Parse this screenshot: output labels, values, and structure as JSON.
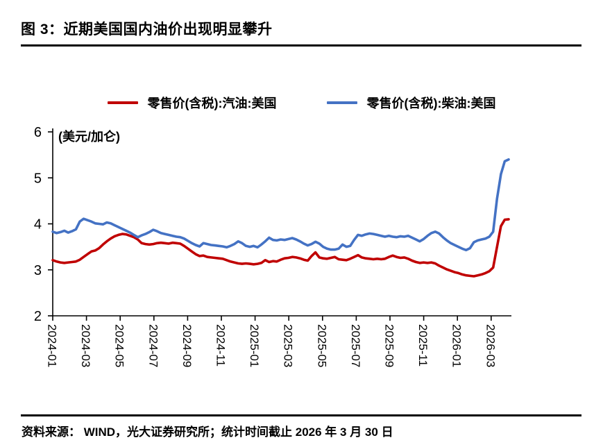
{
  "page": {
    "title": "图 3：近期美国国内油价出现明显攀升",
    "source_note": "资料来源： WIND，光大证券研究所；统计时间截止 2026 年 3 月 30 日"
  },
  "chart_data": {
    "type": "line",
    "title": "图 3：近期美国国内油价出现明显攀升",
    "unit_label": "(美元/加仑)",
    "xlabel": "",
    "ylabel": "(美元/加仑)",
    "ylim": [
      2,
      6
    ],
    "yticks": [
      6,
      5,
      4,
      3,
      2
    ],
    "grid": false,
    "legend_position": "top",
    "x_ticklabels": [
      "2024-01",
      "2024-03",
      "2024-05",
      "2024-07",
      "2024-09",
      "2024-11",
      "2025-01",
      "2025-03",
      "2025-05",
      "2025-07",
      "2025-09",
      "2025-11",
      "2026-01",
      "2026-03"
    ],
    "x_frequency_note": "weekly points, 2024-01 through 2026-03-30",
    "series": [
      {
        "name": "零售价(含税):汽油:美国",
        "color": "#c00000",
        "values": [
          3.21,
          3.18,
          3.16,
          3.15,
          3.16,
          3.17,
          3.18,
          3.22,
          3.28,
          3.34,
          3.4,
          3.42,
          3.47,
          3.55,
          3.62,
          3.68,
          3.73,
          3.76,
          3.78,
          3.77,
          3.74,
          3.71,
          3.66,
          3.58,
          3.56,
          3.55,
          3.56,
          3.58,
          3.59,
          3.58,
          3.57,
          3.59,
          3.58,
          3.57,
          3.52,
          3.46,
          3.4,
          3.34,
          3.3,
          3.31,
          3.28,
          3.27,
          3.26,
          3.25,
          3.24,
          3.21,
          3.18,
          3.16,
          3.14,
          3.13,
          3.14,
          3.13,
          3.12,
          3.13,
          3.15,
          3.21,
          3.17,
          3.19,
          3.18,
          3.22,
          3.25,
          3.26,
          3.28,
          3.27,
          3.25,
          3.22,
          3.2,
          3.3,
          3.38,
          3.27,
          3.25,
          3.24,
          3.26,
          3.28,
          3.23,
          3.22,
          3.21,
          3.24,
          3.28,
          3.32,
          3.27,
          3.25,
          3.24,
          3.23,
          3.24,
          3.23,
          3.24,
          3.28,
          3.31,
          3.28,
          3.26,
          3.27,
          3.24,
          3.2,
          3.17,
          3.15,
          3.16,
          3.15,
          3.16,
          3.14,
          3.09,
          3.05,
          3.01,
          2.98,
          2.95,
          2.93,
          2.9,
          2.88,
          2.87,
          2.86,
          2.88,
          2.9,
          2.93,
          2.97,
          3.05,
          3.5,
          3.95,
          4.09,
          4.1
        ]
      },
      {
        "name": "零售价(含税):柴油:美国",
        "color": "#4472c4",
        "values": [
          3.83,
          3.8,
          3.82,
          3.85,
          3.81,
          3.84,
          3.88,
          4.05,
          4.11,
          4.08,
          4.05,
          4.01,
          4.0,
          3.99,
          4.03,
          4.01,
          3.97,
          3.93,
          3.89,
          3.85,
          3.81,
          3.76,
          3.71,
          3.75,
          3.78,
          3.82,
          3.87,
          3.84,
          3.8,
          3.78,
          3.76,
          3.74,
          3.72,
          3.71,
          3.68,
          3.63,
          3.58,
          3.54,
          3.51,
          3.58,
          3.56,
          3.54,
          3.53,
          3.52,
          3.51,
          3.49,
          3.52,
          3.56,
          3.62,
          3.58,
          3.52,
          3.5,
          3.52,
          3.49,
          3.55,
          3.62,
          3.7,
          3.65,
          3.64,
          3.66,
          3.65,
          3.67,
          3.69,
          3.66,
          3.62,
          3.57,
          3.53,
          3.56,
          3.61,
          3.57,
          3.5,
          3.46,
          3.44,
          3.44,
          3.46,
          3.55,
          3.5,
          3.52,
          3.65,
          3.76,
          3.74,
          3.77,
          3.79,
          3.78,
          3.76,
          3.74,
          3.72,
          3.74,
          3.72,
          3.71,
          3.73,
          3.72,
          3.74,
          3.7,
          3.66,
          3.62,
          3.67,
          3.74,
          3.8,
          3.83,
          3.79,
          3.71,
          3.64,
          3.58,
          3.54,
          3.5,
          3.46,
          3.43,
          3.47,
          3.6,
          3.64,
          3.66,
          3.68,
          3.72,
          3.83,
          4.55,
          5.08,
          5.36,
          5.4
        ]
      }
    ]
  }
}
